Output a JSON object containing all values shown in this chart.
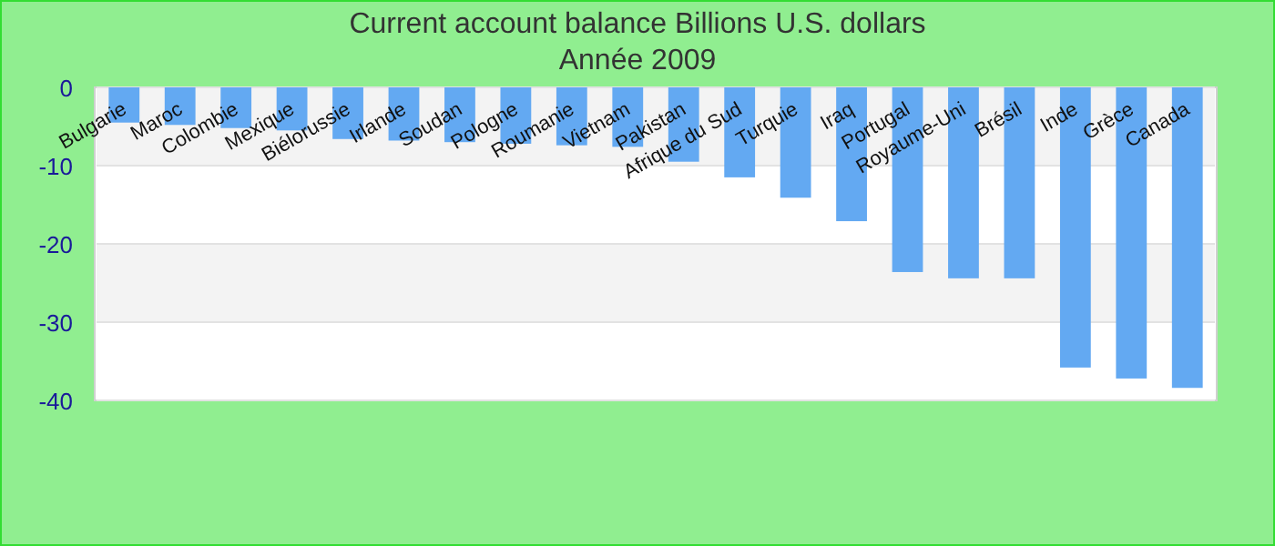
{
  "chart_data": {
    "type": "bar",
    "title": "Current account balance Billions U.S. dollars",
    "subtitle": "Année 2009",
    "categories": [
      "Bulgarie",
      "Maroc",
      "Colombie",
      "Mexique",
      "Biélorussie",
      "Irlande",
      "Soudan",
      "Pologne",
      "Roumanie",
      "Vietnam",
      "Pakistan",
      "Afrique du Sud",
      "Turquie",
      "Iraq",
      "Portugal",
      "Royaume-Uni",
      "Brésil",
      "Inde",
      "Grèce",
      "Canada"
    ],
    "values": [
      -4.5,
      -4.8,
      -5.2,
      -5.5,
      -6.6,
      -6.8,
      -7.0,
      -7.2,
      -7.4,
      -7.6,
      -9.5,
      -11.5,
      -14.1,
      -17.1,
      -23.6,
      -24.4,
      -24.4,
      -35.8,
      -37.2,
      -38.4
    ],
    "color": "#63a9f2",
    "ylim": [
      -40,
      0
    ],
    "yticks": [
      -40,
      -30,
      -20,
      -10,
      0
    ],
    "grid": "y"
  }
}
